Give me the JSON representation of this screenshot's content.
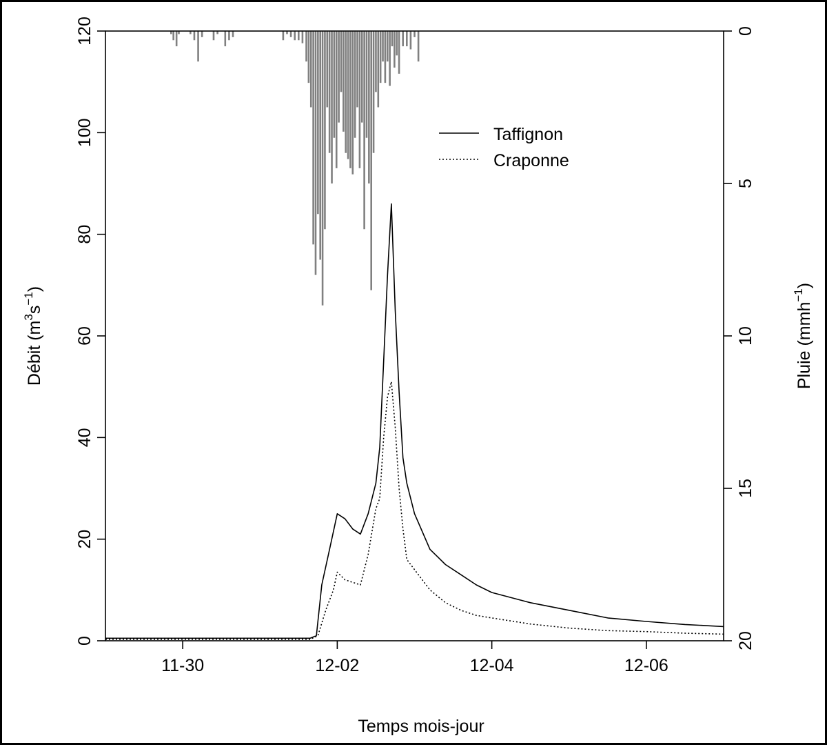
{
  "chart_data": {
    "type": "line",
    "xlabel": "Temps mois-jour",
    "ylabel": "Débit (m³s⁻¹)",
    "ylabel_parts": {
      "pre": "Débit (m",
      "sup1": "3",
      "mid": "s",
      "sup2": "−1",
      "post": ")"
    },
    "y2label": "Pluie (mmh⁻¹)",
    "y2label_parts": {
      "pre": "Pluie (mmh",
      "sup": "−1",
      "post": ")"
    },
    "xlim": [
      -1,
      7
    ],
    "x_ticks": [
      {
        "v": 0,
        "label": "11-30"
      },
      {
        "v": 2,
        "label": "12-02"
      },
      {
        "v": 4,
        "label": "12-04"
      },
      {
        "v": 6,
        "label": "12-06"
      }
    ],
    "ylim": [
      0,
      120
    ],
    "y_ticks": [
      0,
      20,
      40,
      60,
      80,
      100,
      120
    ],
    "y2lim": [
      0,
      20
    ],
    "y2_ticks": [
      0,
      5,
      10,
      15,
      20
    ],
    "legend": {
      "position": "top-right",
      "entries": [
        "Taffignon",
        "Craponne"
      ]
    },
    "series": [
      {
        "name": "Taffignon",
        "style": "solid",
        "x": [
          -1,
          1.0,
          1.65,
          1.73,
          1.8,
          1.9,
          2.0,
          2.1,
          2.2,
          2.3,
          2.4,
          2.5,
          2.55,
          2.6,
          2.65,
          2.7,
          2.75,
          2.8,
          2.85,
          2.9,
          3.0,
          3.2,
          3.4,
          3.6,
          3.8,
          4.0,
          4.5,
          5.0,
          5.5,
          6.0,
          6.5,
          7.0
        ],
        "y": [
          0.5,
          0.5,
          0.5,
          1,
          11,
          18,
          25,
          24,
          22,
          21,
          25,
          31,
          38,
          55,
          72,
          86,
          65,
          49,
          36,
          31,
          25,
          18,
          15,
          13,
          11,
          9.5,
          7.5,
          6,
          4.5,
          3.8,
          3.2,
          2.8
        ]
      },
      {
        "name": "Craponne",
        "style": "dotted",
        "x": [
          -1,
          1.0,
          1.65,
          1.75,
          1.85,
          1.95,
          2.0,
          2.1,
          2.2,
          2.3,
          2.4,
          2.5,
          2.55,
          2.6,
          2.65,
          2.7,
          2.75,
          2.8,
          2.85,
          2.9,
          3.0,
          3.2,
          3.4,
          3.6,
          3.8,
          4.0,
          4.5,
          5.0,
          5.5,
          6.0,
          6.5,
          7.0
        ],
        "y": [
          0.3,
          0.3,
          0.3,
          1,
          6,
          10,
          13.5,
          12,
          11.5,
          11,
          17,
          26,
          28,
          40,
          48,
          51,
          42,
          30,
          22,
          16,
          14,
          10,
          7.5,
          6,
          5,
          4.5,
          3.3,
          2.5,
          2.0,
          1.8,
          1.5,
          1.3
        ]
      }
    ],
    "rain_bars": {
      "axis": "y2",
      "unit": "mmh⁻¹",
      "inverted": true,
      "x": [
        -0.15,
        -0.12,
        -0.08,
        -0.05,
        0.1,
        0.15,
        0.2,
        0.25,
        0.4,
        0.45,
        0.55,
        0.6,
        0.65,
        1.3,
        1.35,
        1.4,
        1.45,
        1.5,
        1.55,
        1.6,
        1.63,
        1.66,
        1.69,
        1.72,
        1.75,
        1.78,
        1.81,
        1.84,
        1.87,
        1.9,
        1.93,
        1.96,
        1.99,
        2.02,
        2.05,
        2.08,
        2.11,
        2.14,
        2.17,
        2.2,
        2.23,
        2.26,
        2.29,
        2.32,
        2.35,
        2.38,
        2.41,
        2.44,
        2.47,
        2.5,
        2.53,
        2.56,
        2.59,
        2.62,
        2.65,
        2.68,
        2.71,
        2.74,
        2.77,
        2.8,
        2.85,
        2.9,
        2.95,
        3.0,
        3.05
      ],
      "values": [
        0.1,
        0.3,
        0.5,
        0.1,
        0.1,
        0.3,
        1.0,
        0.2,
        0.3,
        0.1,
        0.5,
        0.3,
        0.2,
        0.3,
        0.1,
        0.2,
        0.3,
        0.3,
        0.4,
        1.0,
        1.7,
        2.5,
        7.0,
        8.0,
        6.0,
        7.5,
        9.0,
        6.5,
        2.5,
        4.0,
        5.0,
        3.5,
        4.5,
        3.0,
        2.0,
        3.3,
        4.0,
        4.2,
        4.5,
        4.7,
        3.5,
        2.5,
        4.5,
        3.0,
        6.5,
        3.5,
        5.0,
        8.5,
        4.0,
        2.0,
        2.5,
        1.7,
        1.0,
        1.7,
        1.0,
        1.8,
        0.5,
        1.2,
        0.8,
        1.4,
        0.5,
        0.5,
        0.6,
        0.2,
        1.0
      ]
    }
  }
}
